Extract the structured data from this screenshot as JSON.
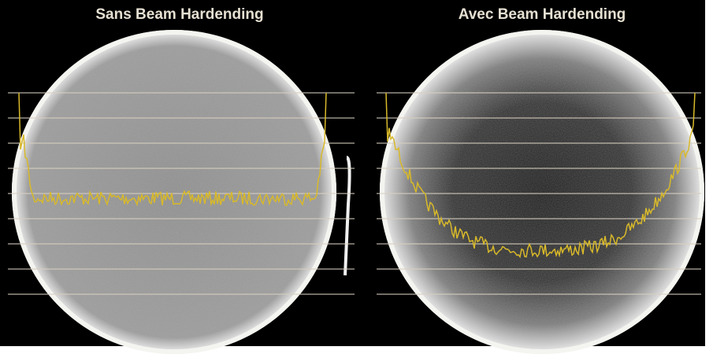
{
  "panels": [
    {
      "title": "Sans Beam Hardending"
    },
    {
      "title": "Avec Beam Hardending"
    }
  ]
}
